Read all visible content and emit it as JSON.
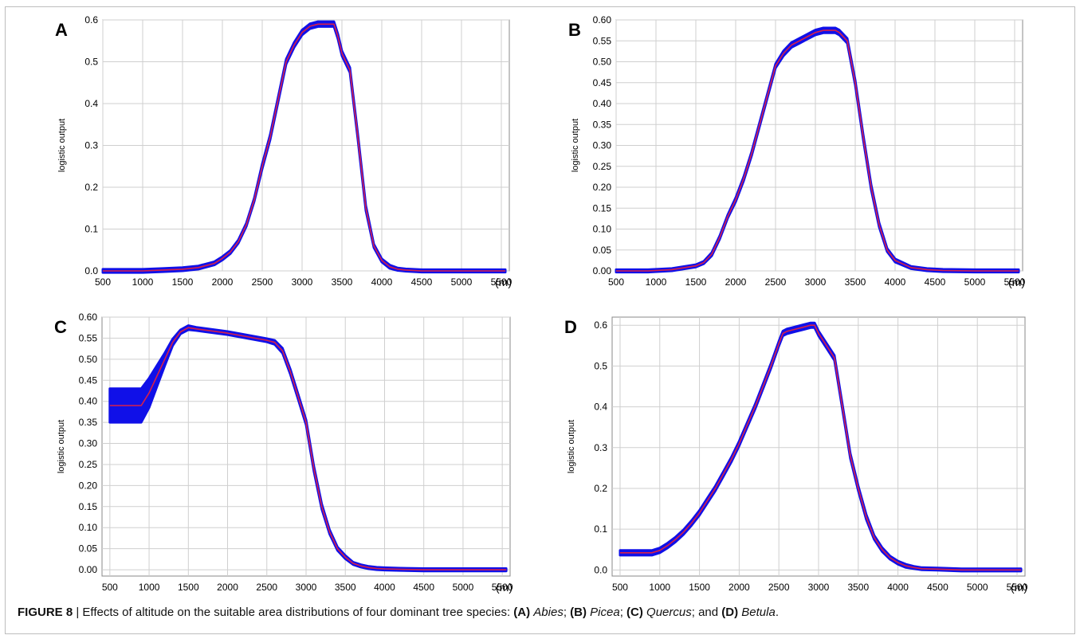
{
  "caption": {
    "label": "FIGURE 8",
    "separator": " | ",
    "lead": "Effects of altitude on the suitable area distributions of four dominant tree species: ",
    "items": [
      {
        "tag": "(A)",
        "name": "Abies",
        "sep": "; "
      },
      {
        "tag": "(B)",
        "name": "Picea",
        "sep": "; "
      },
      {
        "tag": "(C)",
        "name": "Quercus",
        "sep": "; and "
      },
      {
        "tag": "(D)",
        "name": "Betula",
        "sep": "."
      }
    ]
  },
  "colors": {
    "mean_line": "#d8204a",
    "band": "#1010e8",
    "grid": "#cfcfcf",
    "frame": "#bdbdbd"
  },
  "chart_data": [
    {
      "panel": "A",
      "type": "line",
      "ylabel": "logistic output",
      "xunit": "(m)",
      "xlim": [
        500,
        5600
      ],
      "ylim": [
        0,
        0.6
      ],
      "xticks": [
        "500",
        "1000",
        "1500",
        "2000",
        "2500",
        "3000",
        "3500",
        "4000",
        "4500",
        "5000",
        "5500"
      ],
      "yticks": [
        "0.0",
        "0.1",
        "0.2",
        "0.3",
        "0.4",
        "0.5",
        "0.6"
      ],
      "grid": true,
      "series": [
        {
          "x": [
            500,
            1000,
            1250,
            1500,
            1700,
            1900,
            2000,
            2100,
            2200,
            2300,
            2400,
            2500,
            2600,
            2700,
            2800,
            2900,
            3000,
            3100,
            3200,
            3300,
            3400,
            3450,
            3500,
            3600,
            3700,
            3800,
            3900,
            4000,
            4100,
            4200,
            4300,
            4500,
            5000,
            5550
          ],
          "y": [
            0,
            0,
            0.002,
            0.004,
            0.008,
            0.018,
            0.03,
            0.045,
            0.07,
            0.11,
            0.17,
            0.25,
            0.32,
            0.41,
            0.5,
            0.54,
            0.57,
            0.585,
            0.59,
            0.59,
            0.59,
            0.56,
            0.52,
            0.48,
            0.32,
            0.15,
            0.06,
            0.025,
            0.01,
            0.004,
            0.002,
            0,
            0,
            0
          ],
          "band": [
            0.004,
            0.004,
            0.004,
            0.004,
            0.004,
            0.004,
            0.004,
            0.004,
            0.004,
            0.004,
            0.004,
            0.006,
            0.006,
            0.006,
            0.006,
            0.006,
            0.006,
            0.006,
            0.006,
            0.006,
            0.006,
            0.006,
            0.006,
            0.006,
            0.006,
            0.006,
            0.004,
            0.004,
            0.004,
            0.003,
            0.003,
            0.003,
            0.003,
            0.003
          ]
        }
      ]
    },
    {
      "panel": "B",
      "type": "line",
      "ylabel": "logistic output",
      "xunit": "(m)",
      "xlim": [
        500,
        5600
      ],
      "ylim": [
        0,
        0.6
      ],
      "xticks": [
        "500",
        "1000",
        "1500",
        "2000",
        "2500",
        "3000",
        "3500",
        "4000",
        "4500",
        "5000",
        "5500"
      ],
      "yticks": [
        "0.00",
        "0.05",
        "0.10",
        "0.15",
        "0.20",
        "0.25",
        "0.30",
        "0.35",
        "0.40",
        "0.45",
        "0.50",
        "0.55",
        "0.60"
      ],
      "grid": true,
      "series": [
        {
          "x": [
            500,
            900,
            1200,
            1500,
            1600,
            1700,
            1800,
            1900,
            2000,
            2100,
            2200,
            2300,
            2400,
            2500,
            2600,
            2700,
            2800,
            2900,
            3000,
            3100,
            3200,
            3250,
            3300,
            3400,
            3450,
            3500,
            3600,
            3700,
            3800,
            3900,
            4000,
            4200,
            4400,
            4600,
            5000,
            5550
          ],
          "y": [
            0,
            0,
            0.003,
            0.012,
            0.02,
            0.04,
            0.08,
            0.13,
            0.17,
            0.22,
            0.28,
            0.35,
            0.42,
            0.49,
            0.52,
            0.54,
            0.55,
            0.56,
            0.57,
            0.575,
            0.575,
            0.575,
            0.57,
            0.55,
            0.5,
            0.45,
            0.32,
            0.2,
            0.11,
            0.05,
            0.025,
            0.008,
            0.003,
            0.001,
            0,
            0
          ],
          "band": [
            0.003,
            0.003,
            0.003,
            0.003,
            0.003,
            0.004,
            0.004,
            0.004,
            0.005,
            0.005,
            0.005,
            0.005,
            0.005,
            0.005,
            0.006,
            0.006,
            0.006,
            0.006,
            0.006,
            0.006,
            0.006,
            0.006,
            0.006,
            0.006,
            0.006,
            0.006,
            0.006,
            0.006,
            0.005,
            0.004,
            0.004,
            0.003,
            0.003,
            0.003,
            0.003,
            0.003
          ]
        }
      ]
    },
    {
      "panel": "C",
      "type": "line",
      "ylabel": "logistic output",
      "xunit": "(m)",
      "xlim": [
        400,
        5600
      ],
      "ylim": [
        -0.015,
        0.6
      ],
      "xticks": [
        "500",
        "1000",
        "1500",
        "2000",
        "2500",
        "3000",
        "3500",
        "4000",
        "4500",
        "5000",
        "5500"
      ],
      "yticks": [
        "0.00",
        "0.05",
        "0.10",
        "0.15",
        "0.20",
        "0.25",
        "0.30",
        "0.35",
        "0.40",
        "0.45",
        "0.50",
        "0.55",
        "0.60"
      ],
      "grid": true,
      "series": [
        {
          "x": [
            500,
            900,
            1000,
            1100,
            1200,
            1300,
            1400,
            1500,
            1600,
            2000,
            2500,
            2600,
            2700,
            2800,
            2900,
            3000,
            3100,
            3200,
            3300,
            3400,
            3500,
            3600,
            3700,
            3800,
            3900,
            4000,
            4200,
            4500,
            5000,
            5550
          ],
          "y": [
            0.39,
            0.39,
            0.42,
            0.46,
            0.5,
            0.54,
            0.565,
            0.575,
            0.572,
            0.562,
            0.545,
            0.54,
            0.52,
            0.47,
            0.41,
            0.35,
            0.24,
            0.15,
            0.09,
            0.05,
            0.03,
            0.015,
            0.009,
            0.005,
            0.003,
            0.002,
            0.001,
            0,
            0,
            0
          ],
          "band": [
            0.04,
            0.04,
            0.035,
            0.025,
            0.015,
            0.008,
            0.005,
            0.005,
            0.004,
            0.004,
            0.004,
            0.005,
            0.006,
            0.006,
            0.006,
            0.006,
            0.006,
            0.006,
            0.005,
            0.004,
            0.004,
            0.003,
            0.003,
            0.003,
            0.003,
            0.003,
            0.003,
            0.003,
            0.003,
            0.003
          ]
        }
      ]
    },
    {
      "panel": "D",
      "type": "line",
      "ylabel": "logistic output",
      "xunit": "(m)",
      "xlim": [
        400,
        5600
      ],
      "ylim": [
        -0.015,
        0.62
      ],
      "xticks": [
        "500",
        "1000",
        "1500",
        "2000",
        "2500",
        "3000",
        "3500",
        "4000",
        "4500",
        "5000",
        "5500"
      ],
      "yticks": [
        "0.0",
        "0.1",
        "0.2",
        "0.3",
        "0.4",
        "0.5",
        "0.6"
      ],
      "grid": true,
      "series": [
        {
          "x": [
            500,
            900,
            1000,
            1100,
            1200,
            1300,
            1400,
            1500,
            1600,
            1700,
            1800,
            1900,
            2000,
            2100,
            2200,
            2300,
            2400,
            2500,
            2550,
            2600,
            2700,
            2800,
            2900,
            2950,
            3000,
            3100,
            3200,
            3300,
            3400,
            3500,
            3600,
            3700,
            3800,
            3900,
            4000,
            4100,
            4200,
            4300,
            4500,
            4800,
            5000,
            5550
          ],
          "y": [
            0.042,
            0.042,
            0.048,
            0.06,
            0.075,
            0.093,
            0.115,
            0.14,
            0.17,
            0.2,
            0.235,
            0.27,
            0.31,
            0.355,
            0.4,
            0.45,
            0.5,
            0.555,
            0.58,
            0.585,
            0.59,
            0.595,
            0.6,
            0.6,
            0.58,
            0.55,
            0.52,
            0.4,
            0.28,
            0.2,
            0.13,
            0.08,
            0.05,
            0.03,
            0.018,
            0.01,
            0.006,
            0.003,
            0.002,
            0,
            0,
            0
          ],
          "band": [
            0.006,
            0.006,
            0.006,
            0.006,
            0.006,
            0.006,
            0.006,
            0.006,
            0.006,
            0.006,
            0.006,
            0.006,
            0.006,
            0.006,
            0.006,
            0.006,
            0.006,
            0.006,
            0.006,
            0.006,
            0.006,
            0.006,
            0.006,
            0.006,
            0.006,
            0.006,
            0.006,
            0.006,
            0.006,
            0.006,
            0.006,
            0.005,
            0.005,
            0.004,
            0.004,
            0.004,
            0.003,
            0.003,
            0.003,
            0.003,
            0.003,
            0.003
          ]
        }
      ]
    }
  ]
}
